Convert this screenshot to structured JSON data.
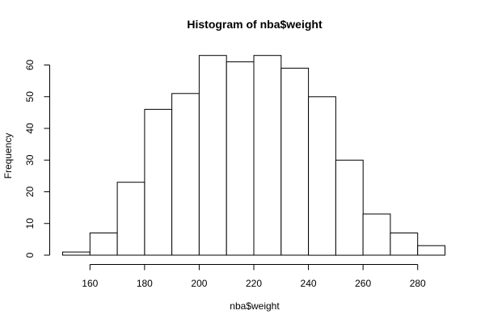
{
  "chart_data": {
    "type": "bar",
    "title": "Histogram of nba$weight",
    "xlabel": "nba$weight",
    "ylabel": "Frequency",
    "bins": [
      {
        "from": 150,
        "to": 160,
        "count": 1
      },
      {
        "from": 160,
        "to": 170,
        "count": 7
      },
      {
        "from": 170,
        "to": 180,
        "count": 23
      },
      {
        "from": 180,
        "to": 190,
        "count": 46
      },
      {
        "from": 190,
        "to": 200,
        "count": 51
      },
      {
        "from": 200,
        "to": 210,
        "count": 63
      },
      {
        "from": 210,
        "to": 220,
        "count": 61
      },
      {
        "from": 220,
        "to": 230,
        "count": 63
      },
      {
        "from": 230,
        "to": 240,
        "count": 59
      },
      {
        "from": 240,
        "to": 250,
        "count": 50
      },
      {
        "from": 250,
        "to": 260,
        "count": 30
      },
      {
        "from": 260,
        "to": 270,
        "count": 13
      },
      {
        "from": 270,
        "to": 280,
        "count": 7
      },
      {
        "from": 280,
        "to": 290,
        "count": 3
      }
    ],
    "xticks": [
      160,
      180,
      200,
      220,
      240,
      260,
      280
    ],
    "yticks": [
      0,
      10,
      20,
      30,
      40,
      50,
      60
    ],
    "xlim": [
      150,
      290
    ],
    "ylim": [
      0,
      63
    ],
    "grid": false,
    "bar_fill": "#ffffff",
    "bar_stroke": "#000000"
  }
}
